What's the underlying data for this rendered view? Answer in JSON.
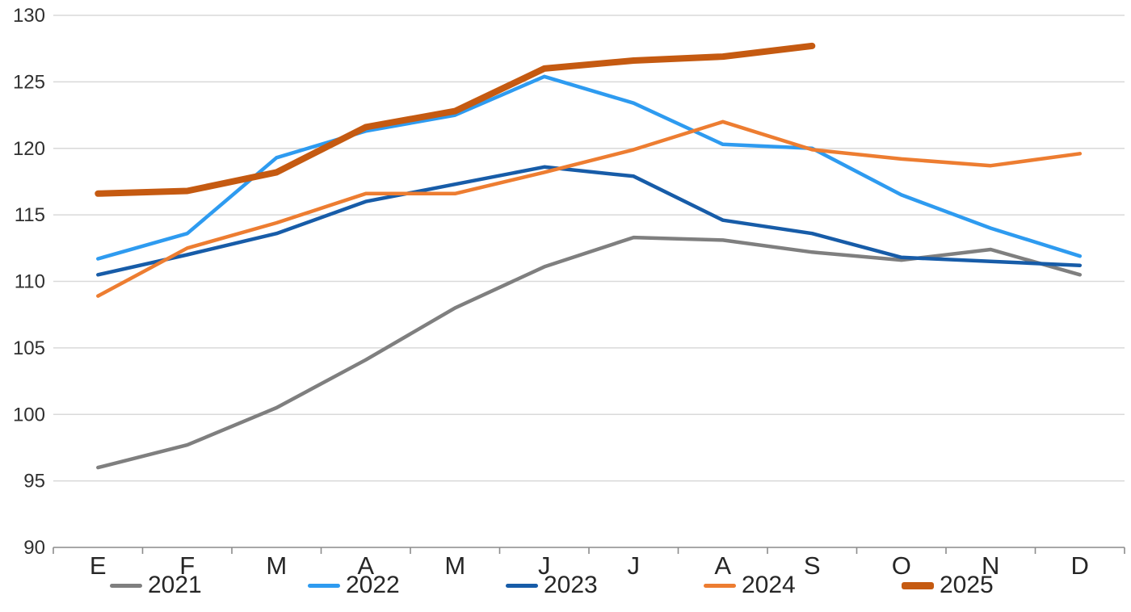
{
  "chart_data": {
    "type": "line",
    "title": "",
    "x_categories": [
      "E",
      "F",
      "M",
      "A",
      "M",
      "J",
      "J",
      "A",
      "S",
      "O",
      "N",
      "D"
    ],
    "y_axis": {
      "min": 90,
      "max": 130,
      "step": 5,
      "tick_labels": [
        "90",
        "95",
        "100",
        "105",
        "110",
        "115",
        "120",
        "125",
        "130"
      ]
    },
    "grid": true,
    "legend_position": "bottom",
    "colors": {
      "gridline": "#D9D9D9",
      "axis": "#8C8C8C",
      "tick_text": "#303030",
      "month_text": "#262626"
    },
    "series": [
      {
        "name": "2021",
        "color": "#7F7F7F",
        "thick": false,
        "values": [
          96.0,
          97.7,
          100.5,
          104.1,
          108.0,
          111.1,
          113.3,
          113.1,
          112.2,
          111.6,
          112.4,
          110.5
        ]
      },
      {
        "name": "2022",
        "color": "#2E9BF0",
        "thick": false,
        "values": [
          111.7,
          113.6,
          119.3,
          121.3,
          122.5,
          125.4,
          123.4,
          120.3,
          120.0,
          116.5,
          114.0,
          111.9
        ]
      },
      {
        "name": "2023",
        "color": "#175CA8",
        "thick": false,
        "values": [
          110.5,
          112.0,
          113.6,
          116.0,
          117.3,
          118.6,
          117.9,
          114.6,
          113.6,
          111.8,
          111.5,
          111.2
        ]
      },
      {
        "name": "2024",
        "color": "#ED7D31",
        "thick": false,
        "values": [
          108.9,
          112.5,
          114.4,
          116.6,
          116.6,
          118.2,
          119.9,
          122.0,
          119.9,
          119.2,
          118.7,
          119.6
        ]
      },
      {
        "name": "2025",
        "color": "#C55A11",
        "thick": true,
        "values": [
          116.6,
          116.8,
          118.2,
          121.6,
          122.8,
          126.0,
          126.6,
          126.9,
          127.7
        ]
      }
    ]
  }
}
